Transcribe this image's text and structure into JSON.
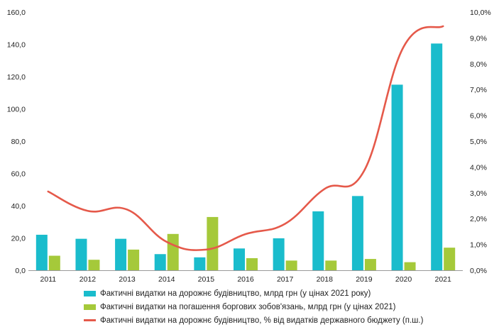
{
  "chart_data": {
    "type": "bar",
    "categories": [
      "2011",
      "2012",
      "2013",
      "2014",
      "2015",
      "2016",
      "2017",
      "2018",
      "2019",
      "2020",
      "2021"
    ],
    "series": [
      {
        "name": "Фактичні видатки на дорожнє будівництво, млрд грн (у цінах 2021 року)",
        "type": "bar",
        "axis": "left",
        "color": "#1ABCCC",
        "values": [
          22.0,
          19.5,
          19.5,
          10.0,
          8.0,
          13.5,
          19.8,
          36.5,
          46.0,
          115.0,
          140.5
        ]
      },
      {
        "name": "Фактичні видатки на погашення боргових зобов'язань, млрд грн (у цінах 2021)",
        "type": "bar",
        "axis": "left",
        "color": "#A5C93A",
        "values": [
          9.0,
          6.5,
          12.8,
          22.5,
          33.0,
          7.5,
          6.0,
          6.0,
          7.0,
          5.0,
          14.0
        ]
      },
      {
        "name": "Фактичні видатки на дорожнє будівництво, % від видатків державного бюджету (п.ш.)",
        "type": "line",
        "axis": "right",
        "color": "#E5594A",
        "values": [
          3.05,
          2.3,
          2.35,
          1.1,
          0.8,
          1.4,
          1.8,
          3.15,
          3.85,
          8.65,
          9.45
        ]
      }
    ],
    "y_left": {
      "min": 0,
      "max": 160,
      "ticks": [
        "0,0",
        "20,0",
        "40,0",
        "60,0",
        "80,0",
        "100,0",
        "120,0",
        "140,0",
        "160,0"
      ]
    },
    "y_right": {
      "min": 0,
      "max": 10,
      "ticks": [
        "0,0%",
        "1,0%",
        "2,0%",
        "3,0%",
        "4,0%",
        "5,0%",
        "6,0%",
        "7,0%",
        "8,0%",
        "9,0%",
        "10,0%"
      ]
    },
    "grid": false,
    "legend_position": "bottom"
  }
}
